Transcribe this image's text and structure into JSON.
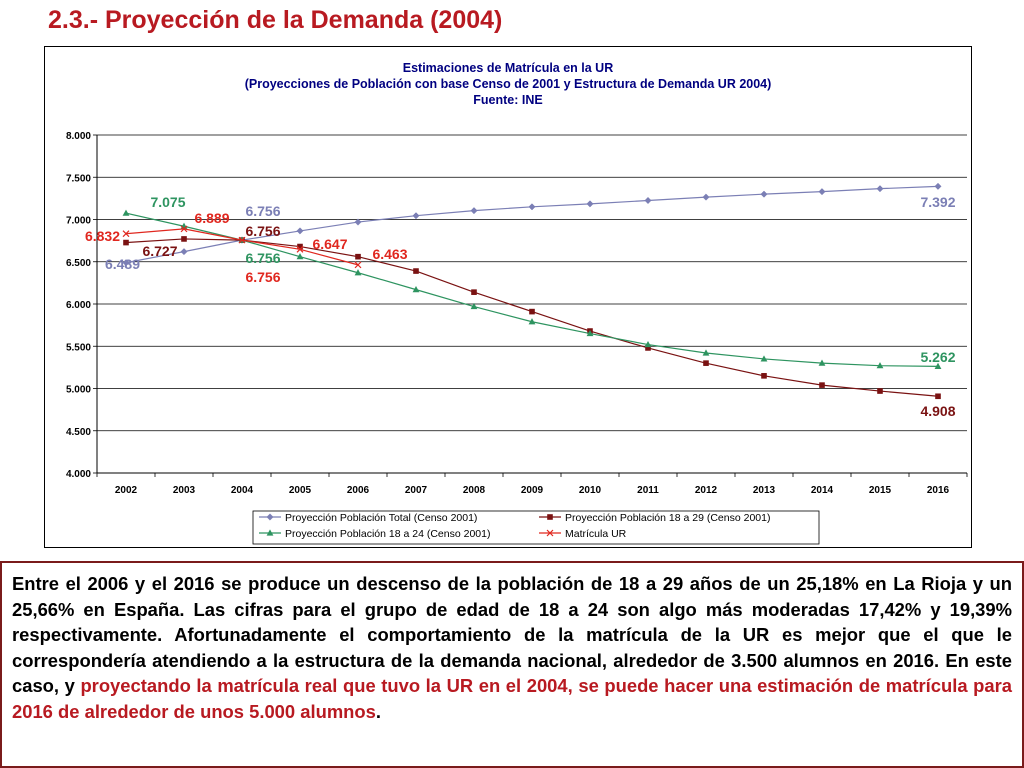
{
  "page": {
    "title": "2.3.- Proyección de la Demanda (2004)"
  },
  "chart_data": {
    "type": "line",
    "title": "Estimaciones de Matrícula en la UR",
    "subtitle": "(Proyecciones de Población con base Censo de 2001 y Estructura de Demanda UR 2004)",
    "source": "Fuente: INE",
    "categories": [
      "2002",
      "2003",
      "2004",
      "2005",
      "2006",
      "2007",
      "2008",
      "2009",
      "2010",
      "2011",
      "2012",
      "2013",
      "2014",
      "2015",
      "2016"
    ],
    "ylim": [
      4000,
      8000
    ],
    "yticks": [
      4000,
      4500,
      5000,
      5500,
      6000,
      6500,
      7000,
      7500,
      8000
    ],
    "ytick_labels": [
      "4.000",
      "4.500",
      "5.000",
      "5.500",
      "6.000",
      "6.500",
      "7.000",
      "7.500",
      "8.000"
    ],
    "grid": true,
    "legend_position": "bottom",
    "series": [
      {
        "name": "Proyección Población Total (Censo 2001)",
        "color": "#7b7fb5",
        "marker": "diamond",
        "values": [
          6489,
          6620,
          6756,
          6865,
          6970,
          7045,
          7105,
          7150,
          7185,
          7225,
          7265,
          7300,
          7330,
          7365,
          7392
        ]
      },
      {
        "name": "Proyección Población 18 a 29 (Censo 2001)",
        "color": "#7a1212",
        "marker": "square",
        "values": [
          6727,
          6770,
          6756,
          6680,
          6560,
          6390,
          6140,
          5910,
          5680,
          5480,
          5300,
          5150,
          5040,
          4970,
          4908
        ]
      },
      {
        "name": "Proyección Población 18 a 24 (Censo 2001)",
        "color": "#2e9460",
        "marker": "triangle",
        "values": [
          7075,
          6920,
          6756,
          6560,
          6370,
          6170,
          5970,
          5790,
          5650,
          5520,
          5420,
          5350,
          5300,
          5270,
          5262
        ]
      },
      {
        "name": "Matrícula UR",
        "color": "#e0271f",
        "marker": "x",
        "values": [
          6832,
          6889,
          6756,
          6647,
          6463,
          null,
          null,
          null,
          null,
          null,
          null,
          null,
          null,
          null,
          null
        ]
      }
    ],
    "annotations": [
      {
        "text": "7.075",
        "color": "#2e9460"
      },
      {
        "text": "6.889",
        "color": "#e0271f"
      },
      {
        "text": "6.832",
        "color": "#e0271f"
      },
      {
        "text": "6.727",
        "color": "#7a1212"
      },
      {
        "text": "6.489",
        "color": "#7b7fb5"
      },
      {
        "text": "6.756",
        "color": "#7b7fb5"
      },
      {
        "text": "6.756",
        "color": "#7a1212"
      },
      {
        "text": "6.756",
        "color": "#2e9460"
      },
      {
        "text": "6.756",
        "color": "#e0271f"
      },
      {
        "text": "6.647",
        "color": "#e0271f"
      },
      {
        "text": "6.463",
        "color": "#e0271f"
      },
      {
        "text": "7.392",
        "color": "#7b7fb5"
      },
      {
        "text": "5.262",
        "color": "#2e9460"
      },
      {
        "text": "4.908",
        "color": "#7a1212"
      }
    ]
  },
  "paragraph": {
    "normal": "Entre el 2006 y el 2016 se produce un descenso de la población de 18 a 29 años de un 25,18% en La Rioja y un 25,66% en España. Las cifras para el grupo de edad de 18 a 24 son algo más moderadas 17,42% y 19,39% respectivamente. Afortunadamente el comportamiento de la matrícula de la UR es mejor que el que le correspondería atendiendo a la estructura de la demanda nacional, alrededor de 3.500 alumnos en 2016. En este caso, y ",
    "highlight": "proyectando la matrícula real que tuvo la UR en el 2004, se puede hacer una estimación de matrícula para 2016 de alrededor de unos 5.000 alumnos",
    "end": "."
  }
}
